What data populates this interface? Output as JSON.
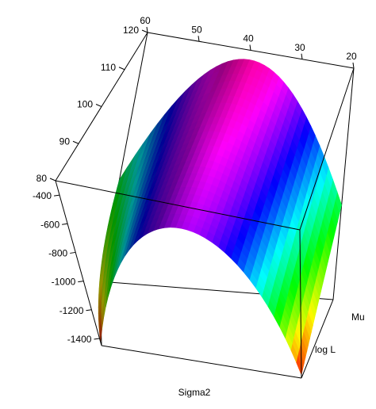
{
  "chart_data": {
    "type": "surface",
    "title": "",
    "axes": {
      "x": {
        "label": "Sigma2",
        "ticks": [
          80,
          90,
          100,
          110,
          120
        ],
        "range": [
          80,
          120
        ]
      },
      "y": {
        "label": "Mu",
        "ticks": [
          20,
          30,
          40,
          50,
          60
        ],
        "tick_labels": [
          "20",
          "30",
          "40",
          "50",
          "60"
        ],
        "range": [
          20,
          60
        ]
      },
      "z": {
        "label": "log L",
        "ticks": [
          -1400,
          -1200,
          -1000,
          -800,
          -600,
          -400
        ],
        "range": [
          -1450,
          -300
        ]
      }
    },
    "grid": {
      "sigma2": [
        80,
        120
      ],
      "mu": [
        20,
        60
      ],
      "peak_mu": 40
    },
    "surface_corners": [
      {
        "sigma2": 80,
        "mu": 60,
        "logL": -1425
      },
      {
        "sigma2": 80,
        "mu": 20,
        "logL": -1425
      },
      {
        "sigma2": 120,
        "mu": 60,
        "logL": -980
      },
      {
        "sigma2": 120,
        "mu": 20,
        "logL": -980
      }
    ],
    "surface_ridge": [
      {
        "sigma2": 80,
        "mu": 40,
        "logL": -470
      },
      {
        "sigma2": 120,
        "mu": 40,
        "logL": -345
      }
    ],
    "colormap": "rainbow",
    "box": true
  }
}
